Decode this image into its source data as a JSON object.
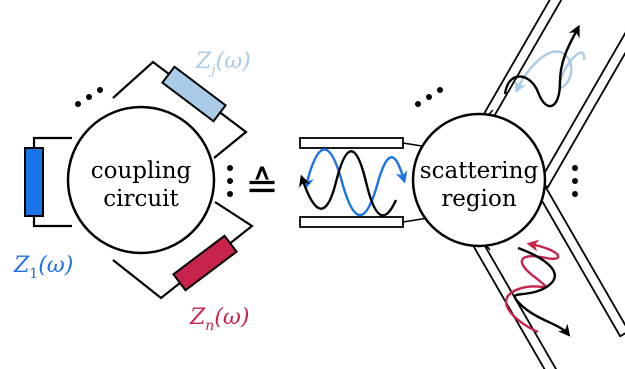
{
  "left": {
    "circle_line1": "coupling",
    "circle_line2": "circuit",
    "z1": {
      "main": "Z",
      "sub": "1",
      "arg": "(ω)",
      "color": "#1a73e8"
    },
    "zj": {
      "main": "Z",
      "sub": "j",
      "arg": "(ω)",
      "color": "#a9cbe8"
    },
    "zn": {
      "main": "Z",
      "sub": "n",
      "arg": "(ω)",
      "color": "#c8234a"
    }
  },
  "equiv_symbol": "≙",
  "right": {
    "circle_line1": "scattering",
    "circle_line2": "region"
  },
  "colors": {
    "blue": "#1a73e8",
    "light_blue": "#a9cbe8",
    "crimson": "#c8234a",
    "black": "#000000"
  }
}
